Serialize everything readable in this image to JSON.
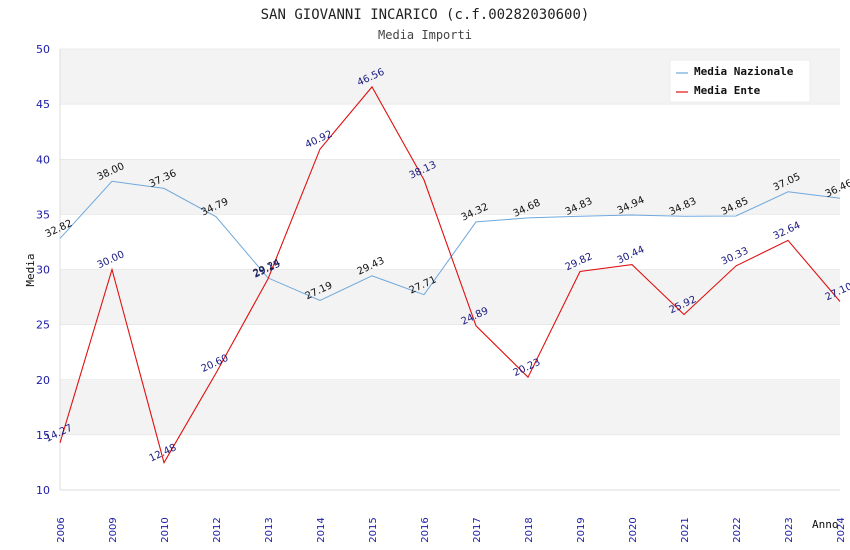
{
  "chart_data": {
    "type": "line",
    "title": "SAN GIOVANNI INCARICO (c.f.00282030600)",
    "subtitle": "Media Importi",
    "xlabel": "Anno",
    "ylabel": "Media",
    "ylim": [
      10,
      50
    ],
    "yticks": [
      "10",
      "15",
      "20",
      "25",
      "30",
      "35",
      "40",
      "45",
      "50"
    ],
    "grid": true,
    "legend_position": "top-right",
    "categories": [
      "2006",
      "2009",
      "2010",
      "2012",
      "2013",
      "2014",
      "2015",
      "2016",
      "2017",
      "2018",
      "2019",
      "2020",
      "2021",
      "2022",
      "2023",
      "2024"
    ],
    "series": [
      {
        "name": "Media Nazionale",
        "color": "#6fa8dc",
        "values": [
          32.82,
          38.0,
          37.36,
          34.79,
          29.24,
          27.19,
          29.43,
          27.71,
          34.32,
          34.68,
          34.83,
          34.94,
          34.83,
          34.85,
          37.05,
          36.46
        ],
        "labels": [
          "32.82",
          "38.00",
          "37.36",
          "34.79",
          "29.24",
          "27.19",
          "29.43",
          "27.71",
          "34.32",
          "34.68",
          "34.83",
          "34.94",
          "34.83",
          "34.85",
          "37.05",
          "36.46"
        ]
      },
      {
        "name": "Media Ente",
        "color": "#e01010",
        "values": [
          14.27,
          30.0,
          12.48,
          20.6,
          29.15,
          40.92,
          46.56,
          38.13,
          24.89,
          20.23,
          29.82,
          30.44,
          25.92,
          30.33,
          32.64,
          27.1
        ],
        "labels": [
          "14.27",
          "30.00",
          "12.48",
          "20.60",
          "29.15",
          "40.92",
          "46.56",
          "38.13",
          "24.89",
          "20.23",
          "29.82",
          "30.44",
          "25.92",
          "30.33",
          "32.64",
          "27.10"
        ]
      }
    ]
  }
}
